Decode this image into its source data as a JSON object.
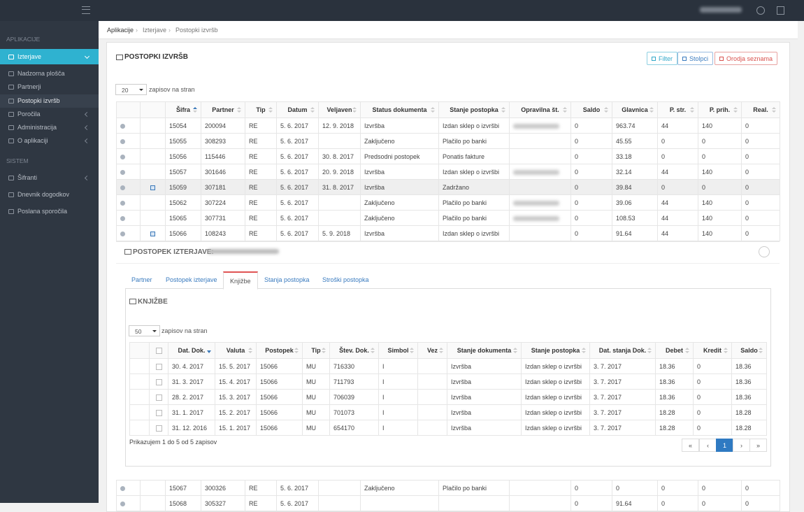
{
  "sidebar": {
    "sections": [
      {
        "title": "APLIKACIJE",
        "items": [
          "Izterjave",
          "Nadzorna plošča",
          "Partnerji",
          "Postopki izvršb",
          "Poročila",
          "Administracija",
          "O aplikaciji"
        ]
      },
      {
        "title": "SISTEM",
        "items": [
          "Šifranti",
          "Dnevnik dogodkov",
          "Poslana sporočila"
        ]
      }
    ]
  },
  "breadcrumb": [
    "Aplikacije",
    "Izterjave",
    "Postopki izvršb"
  ],
  "panel": {
    "title": "POSTOPKI IZVRŠB",
    "buttons": [
      "Filter",
      "Stolpci",
      "Orodja seznama"
    ],
    "page_size": "20",
    "page_size_label": "zapisov na stran"
  },
  "main_table": {
    "headers": [
      "Šifra",
      "Partner",
      "Tip",
      "Datum",
      "Veljaven",
      "Status dokumenta",
      "Stanje postopka",
      "Opravilna št.",
      "Saldo",
      "Glavnica",
      "P. str.",
      "P. prih.",
      "Real."
    ],
    "rows": [
      [
        "15054",
        "200094",
        "RE",
        "5. 6. 2017",
        "12. 9. 2018",
        "Izvršba",
        "Izdan sklep o izvršbi",
        null,
        "0",
        "963.74",
        "44",
        "140",
        "0"
      ],
      [
        "15055",
        "308293",
        "RE",
        "5. 6. 2017",
        null,
        "Zaključeno",
        "Plačilo po banki",
        null,
        "0",
        "45.55",
        "0",
        "0",
        "0"
      ],
      [
        "15056",
        "115446",
        "RE",
        "5. 6. 2017",
        "30. 8. 2017",
        "Predsodni postopek",
        "Ponatis fakture",
        null,
        "0",
        "33.18",
        "0",
        "0",
        "0"
      ],
      [
        "15057",
        "301646",
        "RE",
        "5. 6. 2017",
        "20. 9. 2018",
        "Izvršba",
        "Izdan sklep o izvršbi",
        null,
        "0",
        "32.14",
        "44",
        "140",
        "0"
      ],
      [
        "15059",
        "307181",
        "RE",
        "5. 6. 2017",
        "31. 8. 2017",
        "Izvršba",
        "Zadržano",
        null,
        "0",
        "39.84",
        "0",
        "0",
        "0"
      ],
      [
        "15062",
        "307224",
        "RE",
        "5. 6. 2017",
        null,
        "Zaključeno",
        "Plačilo po banki",
        null,
        "0",
        "39.06",
        "44",
        "140",
        "0"
      ],
      [
        "15065",
        "307731",
        "RE",
        "5. 6. 2017",
        null,
        "Zaključeno",
        "Plačilo po banki",
        null,
        "0",
        "108.53",
        "44",
        "140",
        "0"
      ],
      [
        "15066",
        "108243",
        "RE",
        "5. 6. 2017",
        "5. 9. 2018",
        "Izvršba",
        "Izdan sklep o izvršbi",
        null,
        "0",
        "91.64",
        "44",
        "140",
        "0"
      ],
      [
        "15067",
        "300326",
        "RE",
        "5. 6. 2017",
        null,
        "Zaključeno",
        "Plačilo po banki",
        null,
        "0",
        "0",
        "0",
        "0",
        "0"
      ],
      [
        "15068",
        "305327",
        "RE",
        "5. 6. 2017",
        null,
        null,
        null,
        null,
        "0",
        "91.64",
        "0",
        "0",
        "0"
      ]
    ]
  },
  "detail": {
    "title": "POSTOPEK IZTERJAVE:",
    "tabs": [
      "Partner",
      "Postopek izterjave",
      "Knjižbe",
      "Stanja postopka",
      "Stroški postopka"
    ],
    "section_title": "KNJIŽBE",
    "page_size": "50",
    "page_size_label": "zapisov na stran",
    "table": {
      "headers": [
        "Dat. Dok.",
        "Valuta",
        "Postopek",
        "Tip",
        "Štev. Dok.",
        "Simbol",
        "Vez",
        "Stanje dokumenta",
        "Stanje postopka",
        "Dat. stanja Dok.",
        "Debet",
        "Kredit",
        "Saldo"
      ],
      "rows": [
        [
          "30. 4. 2017",
          "15. 5. 2017",
          "15066",
          "MU",
          "716330",
          "I",
          null,
          "Izvršba",
          "Izdan sklep o izvršbi",
          "3. 7. 2017",
          "18.36",
          "0",
          "18.36"
        ],
        [
          "31. 3. 2017",
          "15. 4. 2017",
          "15066",
          "MU",
          "711793",
          "I",
          null,
          "Izvršba",
          "Izdan sklep o izvršbi",
          "3. 7. 2017",
          "18.36",
          "0",
          "18.36"
        ],
        [
          "28. 2. 2017",
          "15. 3. 2017",
          "15066",
          "MU",
          "706039",
          "I",
          null,
          "Izvršba",
          "Izdan sklep o izvršbi",
          "3. 7. 2017",
          "18.36",
          "0",
          "18.36"
        ],
        [
          "31. 1. 2017",
          "15. 2. 2017",
          "15066",
          "MU",
          "701073",
          "I",
          null,
          "Izvršba",
          "Izdan sklep o izvršbi",
          "3. 7. 2017",
          "18.28",
          "0",
          "18.28"
        ],
        [
          "31. 12. 2016",
          "15. 1. 2017",
          "15066",
          "MU",
          "654170",
          "I",
          null,
          "Izvršba",
          "Izdan sklep o izvršbi",
          "3. 7. 2017",
          "18.28",
          "0",
          "18.28"
        ]
      ]
    },
    "footer": "Prikazujem 1 do 5 od 5 zapisov",
    "pagination": [
      "«",
      "‹",
      "1",
      "›",
      "»"
    ]
  }
}
